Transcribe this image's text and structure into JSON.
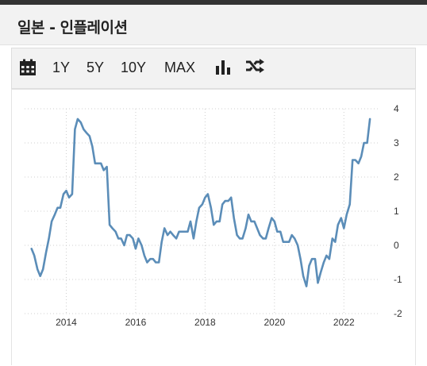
{
  "header": {
    "title": "일본 - 인플레이션"
  },
  "toolbar": {
    "calendar_icon": "calendar-icon",
    "ranges": [
      "1Y",
      "5Y",
      "10Y",
      "MAX"
    ],
    "chart_type_icon": "bar-chart-icon",
    "compare_icon": "shuffle-icon"
  },
  "colors": {
    "line": "#5b8db8",
    "grid": "#cfcfcf",
    "header_bg": "#f2f2f2",
    "topbar": "#333333"
  },
  "chart_data": {
    "type": "line",
    "title": "",
    "xlabel": "",
    "ylabel": "",
    "xlim": [
      2012.8,
      2023.0
    ],
    "ylim": [
      -2,
      4
    ],
    "x_ticks": [
      2014,
      2016,
      2018,
      2020,
      2022
    ],
    "x_tick_labels": [
      "2014",
      "2016",
      "2018",
      "2020",
      "2022"
    ],
    "y_ticks": [
      4,
      3,
      2,
      1,
      0,
      -1,
      -2
    ],
    "y_tick_labels": [
      "4",
      "3",
      "2",
      "1",
      "0",
      "-1",
      "-2"
    ],
    "y_axis_side": "right",
    "grid": true,
    "series": [
      {
        "name": "",
        "x": [
          2013.0,
          2013.08,
          2013.17,
          2013.25,
          2013.33,
          2013.42,
          2013.5,
          2013.58,
          2013.67,
          2013.75,
          2013.83,
          2013.92,
          2014.0,
          2014.08,
          2014.17,
          2014.25,
          2014.33,
          2014.42,
          2014.5,
          2014.58,
          2014.67,
          2014.75,
          2014.83,
          2014.92,
          2015.0,
          2015.08,
          2015.17,
          2015.25,
          2015.33,
          2015.42,
          2015.5,
          2015.58,
          2015.67,
          2015.75,
          2015.83,
          2015.92,
          2016.0,
          2016.08,
          2016.17,
          2016.25,
          2016.33,
          2016.42,
          2016.5,
          2016.58,
          2016.67,
          2016.75,
          2016.83,
          2016.92,
          2017.0,
          2017.08,
          2017.17,
          2017.25,
          2017.33,
          2017.42,
          2017.5,
          2017.58,
          2017.67,
          2017.75,
          2017.83,
          2017.92,
          2018.0,
          2018.08,
          2018.17,
          2018.25,
          2018.33,
          2018.42,
          2018.5,
          2018.58,
          2018.67,
          2018.75,
          2018.83,
          2018.92,
          2019.0,
          2019.08,
          2019.17,
          2019.25,
          2019.33,
          2019.42,
          2019.5,
          2019.58,
          2019.67,
          2019.75,
          2019.83,
          2019.92,
          2020.0,
          2020.08,
          2020.17,
          2020.25,
          2020.33,
          2020.42,
          2020.5,
          2020.58,
          2020.67,
          2020.75,
          2020.83,
          2020.92,
          2021.0,
          2021.08,
          2021.17,
          2021.25,
          2021.33,
          2021.42,
          2021.5,
          2021.58,
          2021.67,
          2021.75,
          2021.83,
          2021.92,
          2022.0,
          2022.08,
          2022.17,
          2022.25,
          2022.33,
          2022.42,
          2022.5,
          2022.58,
          2022.67,
          2022.75
        ],
        "values": [
          -0.1,
          -0.3,
          -0.7,
          -0.9,
          -0.7,
          -0.2,
          0.2,
          0.7,
          0.9,
          1.1,
          1.1,
          1.5,
          1.6,
          1.4,
          1.5,
          3.4,
          3.7,
          3.6,
          3.4,
          3.3,
          3.2,
          2.9,
          2.4,
          2.4,
          2.4,
          2.2,
          2.3,
          0.6,
          0.5,
          0.4,
          0.2,
          0.2,
          0.0,
          0.3,
          0.3,
          0.2,
          -0.1,
          0.2,
          0.0,
          -0.3,
          -0.5,
          -0.4,
          -0.4,
          -0.5,
          -0.5,
          0.1,
          0.5,
          0.3,
          0.4,
          0.3,
          0.2,
          0.4,
          0.4,
          0.4,
          0.4,
          0.7,
          0.2,
          0.7,
          1.1,
          1.2,
          1.4,
          1.5,
          1.1,
          0.6,
          0.7,
          0.7,
          1.2,
          1.3,
          1.3,
          1.4,
          0.8,
          0.3,
          0.2,
          0.2,
          0.5,
          0.9,
          0.7,
          0.7,
          0.5,
          0.3,
          0.2,
          0.2,
          0.5,
          0.8,
          0.7,
          0.4,
          0.4,
          0.1,
          0.1,
          0.1,
          0.3,
          0.2,
          0.0,
          -0.4,
          -0.9,
          -1.2,
          -0.6,
          -0.4,
          -0.4,
          -1.1,
          -0.8,
          -0.5,
          -0.3,
          -0.4,
          0.2,
          0.1,
          0.6,
          0.8,
          0.5,
          0.9,
          1.2,
          2.5,
          2.5,
          2.4,
          2.6,
          3.0,
          3.0,
          3.7
        ]
      }
    ]
  }
}
